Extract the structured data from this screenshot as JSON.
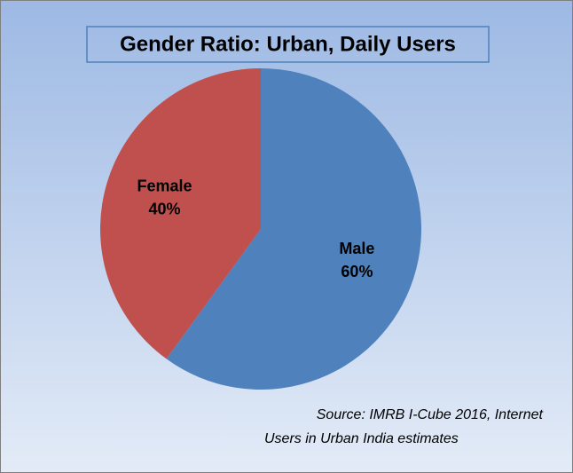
{
  "chart_data": {
    "type": "pie",
    "title": "Gender Ratio: Urban, Daily Users",
    "categories": [
      "Male",
      "Female"
    ],
    "values": [
      60,
      40
    ],
    "value_labels": [
      "60%",
      "40%"
    ],
    "colors": [
      "#4f81bd",
      "#c0504d"
    ],
    "source": [
      "Source: IMRB I-Cube 2016, Internet",
      "Users in Urban India estimates"
    ]
  }
}
